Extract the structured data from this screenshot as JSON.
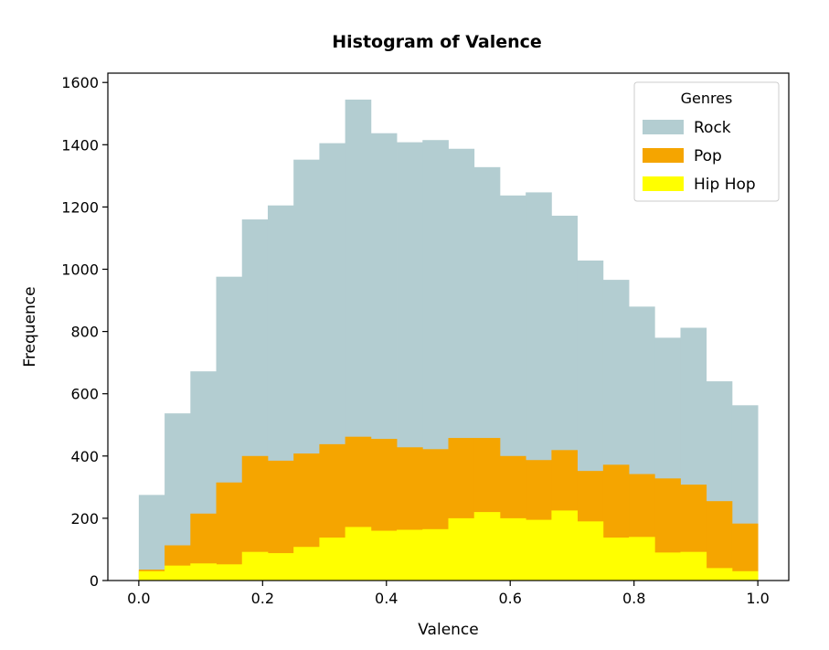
{
  "chart_data": {
    "type": "bar",
    "title": "Histogram of Valence",
    "xlabel": "Valence",
    "ylabel": "Frequence",
    "xlim": [
      -0.05,
      1.05
    ],
    "ylim": [
      0,
      1630
    ],
    "xticks": [
      {
        "value": 0.0,
        "label": "0.0"
      },
      {
        "value": 0.2,
        "label": "0.2"
      },
      {
        "value": 0.4,
        "label": "0.4"
      },
      {
        "value": 0.6,
        "label": "0.6"
      },
      {
        "value": 0.8,
        "label": "0.8"
      },
      {
        "value": 1.0,
        "label": "1.0"
      }
    ],
    "yticks": [
      {
        "value": 0,
        "label": "0"
      },
      {
        "value": 200,
        "label": "200"
      },
      {
        "value": 400,
        "label": "400"
      },
      {
        "value": 600,
        "label": "600"
      },
      {
        "value": 800,
        "label": "800"
      },
      {
        "value": 1000,
        "label": "1000"
      },
      {
        "value": 1200,
        "label": "1200"
      },
      {
        "value": 1400,
        "label": "1400"
      },
      {
        "value": 1600,
        "label": "1600"
      }
    ],
    "grid": false,
    "legend": {
      "title": "Genres",
      "placement": "top-right"
    },
    "bin_edges": [
      0.0,
      0.04167,
      0.08333,
      0.125,
      0.16667,
      0.20833,
      0.25,
      0.29167,
      0.33333,
      0.375,
      0.41667,
      0.45833,
      0.5,
      0.54167,
      0.58333,
      0.625,
      0.66667,
      0.70833,
      0.75,
      0.79167,
      0.83333,
      0.875,
      0.91667,
      0.95833,
      1.0
    ],
    "series": [
      {
        "name": "Rock",
        "color": "#b3cdd1",
        "values": [
          275,
          537,
          672,
          976,
          1160,
          1205,
          1352,
          1405,
          1545,
          1437,
          1408,
          1415,
          1387,
          1328,
          1237,
          1247,
          1172,
          1028,
          966,
          880,
          780,
          812,
          640,
          563
        ]
      },
      {
        "name": "Pop",
        "color": "#f5a500",
        "values": [
          35,
          113,
          215,
          315,
          400,
          385,
          408,
          438,
          462,
          455,
          428,
          422,
          458,
          458,
          400,
          387,
          419,
          352,
          372,
          342,
          328,
          308,
          255,
          183
        ]
      },
      {
        "name": "Hip Hop",
        "color": "#ffff00",
        "values": [
          30,
          48,
          55,
          52,
          92,
          88,
          108,
          138,
          172,
          160,
          163,
          165,
          200,
          220,
          200,
          195,
          225,
          190,
          138,
          140,
          90,
          92,
          40,
          30
        ]
      }
    ]
  }
}
